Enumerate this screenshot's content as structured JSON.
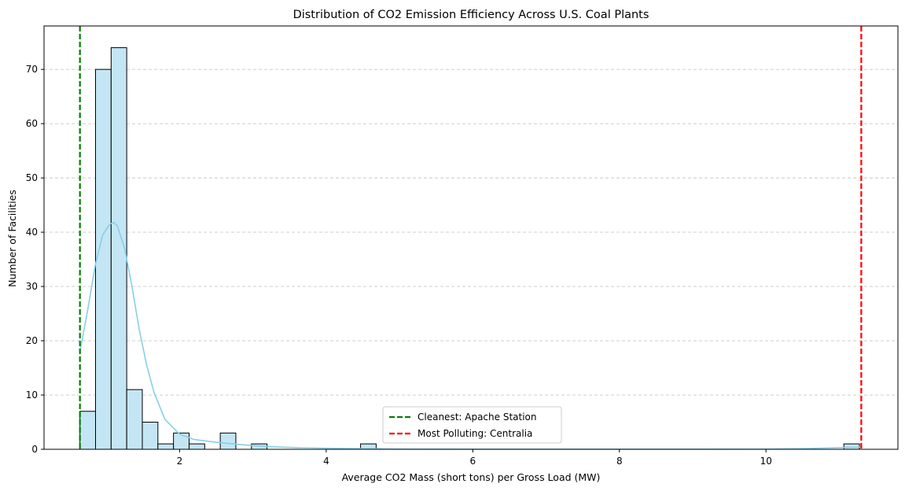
{
  "chart_data": {
    "type": "bar",
    "subtype": "histogram",
    "title": "Distribution of CO2 Emission Efficiency Across U.S. Coal Plants",
    "xlabel": "Average CO2 Mass (short tons) per Gross Load (MW)",
    "ylabel": "Number of Facilities",
    "xlim": [
      0.15,
      11.8
    ],
    "ylim": [
      0,
      78
    ],
    "x_ticks": [
      2,
      4,
      6,
      8,
      10
    ],
    "y_ticks": [
      0,
      10,
      20,
      30,
      40,
      50,
      60,
      70
    ],
    "grid": {
      "axis": "y",
      "style": "dashed"
    },
    "bin_start": 0.64,
    "bin_width": 0.2127,
    "counts": [
      7,
      70,
      74,
      11,
      5,
      1,
      3,
      1,
      0,
      3,
      0,
      1,
      0,
      0,
      0,
      0,
      0,
      0,
      1,
      0,
      0,
      0,
      0,
      0,
      0,
      0,
      0,
      0,
      0,
      0,
      0,
      0,
      0,
      0,
      0,
      0,
      0,
      0,
      0,
      0,
      0,
      0,
      0,
      0,
      0,
      0,
      0,
      0,
      0,
      1
    ],
    "bar_color": "#c4e6f4",
    "bar_edge_color": "#000000",
    "kde": {
      "color": "#87ceeb",
      "x": [
        0.64,
        0.75,
        0.85,
        0.95,
        1.05,
        1.1,
        1.15,
        1.25,
        1.35,
        1.45,
        1.55,
        1.65,
        1.8,
        2.0,
        2.2,
        2.5,
        2.8,
        3.2,
        3.6,
        4.0,
        5.0,
        6.0,
        7.0,
        8.0,
        9.0,
        10.0,
        10.6,
        11.0,
        11.3
      ],
      "y": [
        18,
        26,
        34,
        39.5,
        41.5,
        41.8,
        41.2,
        37,
        30,
        22,
        15.5,
        10.5,
        5.5,
        2.8,
        1.8,
        1.3,
        0.9,
        0.5,
        0.3,
        0.2,
        0.05,
        0.02,
        0.02,
        0.02,
        0.02,
        0.05,
        0.15,
        0.3,
        0.4
      ]
    },
    "reference_lines": [
      {
        "label": "Cleanest: Apache Station",
        "x": 0.64,
        "color": "#008000",
        "style": "dashed"
      },
      {
        "label": "Most Polluting: Centralia",
        "x": 11.3,
        "color": "#ff0000",
        "style": "dashed"
      }
    ],
    "legend": {
      "placement": "lower-center"
    }
  }
}
